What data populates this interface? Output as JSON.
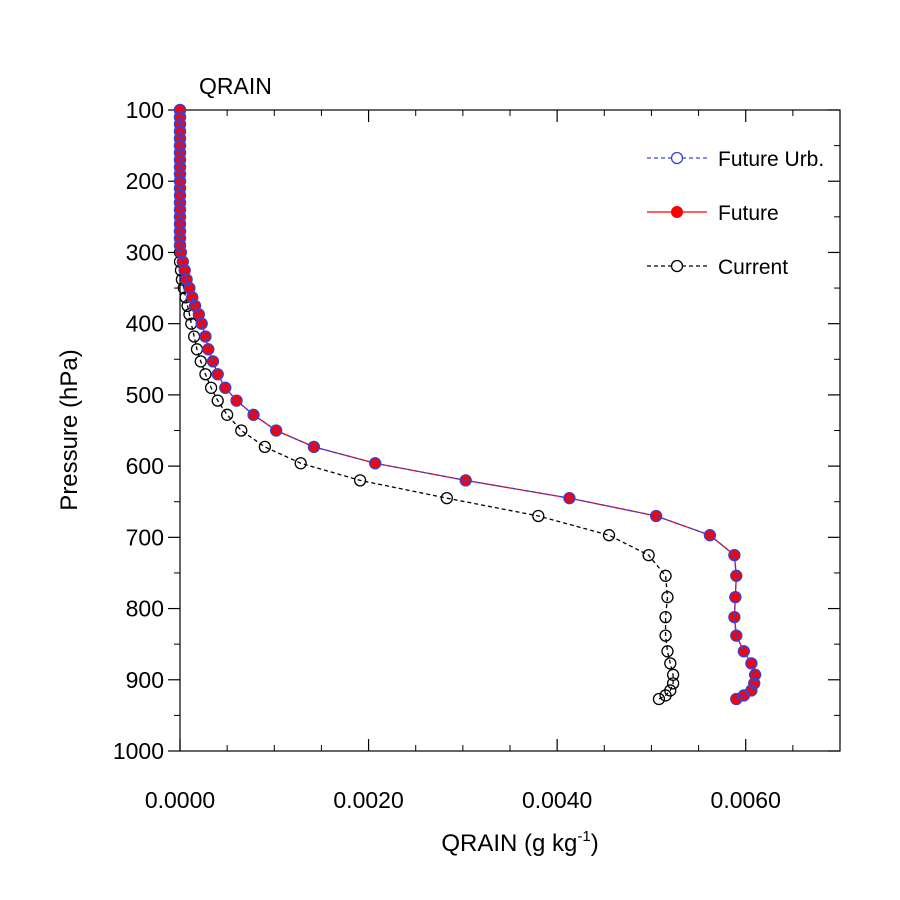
{
  "chart_data": {
    "type": "line",
    "title": "QRAIN",
    "xlabel": "QRAIN (g kg",
    "xlabel_sup": "-1",
    "xlabel_close": ")",
    "ylabel": "Pressure (hPa)",
    "xlim": [
      0.0,
      0.007
    ],
    "ylim": [
      1000,
      100
    ],
    "y_reversed": true,
    "x_ticks": [
      "0.0000",
      "0.0020",
      "0.0040",
      "0.0060"
    ],
    "x_tick_values": [
      0.0,
      0.002,
      0.004,
      0.006
    ],
    "x_minor_step": 0.0005,
    "y_ticks": [
      "100",
      "200",
      "300",
      "400",
      "500",
      "600",
      "700",
      "800",
      "900",
      "1000"
    ],
    "y_tick_values": [
      100,
      200,
      300,
      400,
      500,
      600,
      700,
      800,
      900,
      1000
    ],
    "y_minor_step": 50,
    "grid": false,
    "legend_position": "top-right",
    "series": [
      {
        "name": "Future Urb.",
        "color": "#3344dd",
        "line": "dashed",
        "marker": "open-circle",
        "p": [
          100,
          110,
          120,
          130,
          140,
          150,
          160,
          170,
          180,
          190,
          200,
          210,
          220,
          230,
          240,
          250,
          260,
          270,
          280,
          290,
          300,
          313,
          325,
          338,
          350,
          363,
          375,
          387,
          400,
          418,
          436,
          453,
          471,
          490,
          508,
          528,
          550,
          573,
          596,
          620,
          645,
          670,
          697,
          725,
          754,
          784,
          812,
          838,
          860,
          877,
          893,
          905,
          915,
          922,
          927
        ],
        "x": [
          0,
          0,
          0,
          0,
          0,
          0,
          0,
          0,
          0,
          0,
          0,
          0,
          0,
          0,
          0,
          0,
          0,
          0,
          0,
          0,
          1e-05,
          3e-05,
          5e-05,
          7e-05,
          0.0001,
          0.00013,
          0.00016,
          0.0002,
          0.00023,
          0.00027,
          0.0003,
          0.00035,
          0.0004,
          0.00048,
          0.0006,
          0.00078,
          0.00102,
          0.00142,
          0.00207,
          0.00303,
          0.00413,
          0.00505,
          0.00562,
          0.00588,
          0.0059,
          0.00589,
          0.00588,
          0.0059,
          0.00598,
          0.00606,
          0.0061,
          0.00609,
          0.00606,
          0.00598,
          0.0059
        ]
      },
      {
        "name": "Future",
        "color": "#ff0000",
        "line": "solid",
        "marker": "filled-circle",
        "p": [
          100,
          110,
          120,
          130,
          140,
          150,
          160,
          170,
          180,
          190,
          200,
          210,
          220,
          230,
          240,
          250,
          260,
          270,
          280,
          290,
          300,
          313,
          325,
          338,
          350,
          363,
          375,
          387,
          400,
          418,
          436,
          453,
          471,
          490,
          508,
          528,
          550,
          573,
          596,
          620,
          645,
          670,
          697,
          725,
          754,
          784,
          812,
          838,
          860,
          877,
          893,
          905,
          915,
          922,
          927
        ],
        "x": [
          0,
          0,
          0,
          0,
          0,
          0,
          0,
          0,
          0,
          0,
          0,
          0,
          0,
          0,
          0,
          0,
          0,
          0,
          0,
          0,
          1e-05,
          3e-05,
          5e-05,
          7e-05,
          0.0001,
          0.00013,
          0.00016,
          0.0002,
          0.00023,
          0.00027,
          0.0003,
          0.00035,
          0.0004,
          0.00048,
          0.0006,
          0.00078,
          0.00102,
          0.00142,
          0.00207,
          0.00303,
          0.00413,
          0.00505,
          0.00562,
          0.00588,
          0.0059,
          0.00589,
          0.00588,
          0.0059,
          0.00598,
          0.00606,
          0.0061,
          0.00609,
          0.00606,
          0.00598,
          0.0059
        ]
      },
      {
        "name": "Current",
        "color": "#000000",
        "line": "dashed",
        "marker": "open-circle",
        "p": [
          100,
          110,
          120,
          130,
          140,
          150,
          160,
          170,
          180,
          190,
          200,
          210,
          220,
          230,
          240,
          250,
          260,
          270,
          280,
          290,
          300,
          313,
          325,
          338,
          350,
          363,
          375,
          387,
          400,
          418,
          436,
          453,
          471,
          490,
          508,
          528,
          550,
          573,
          596,
          620,
          645,
          670,
          697,
          725,
          754,
          784,
          812,
          838,
          860,
          877,
          893,
          905,
          915,
          922,
          927
        ],
        "x": [
          0,
          0,
          0,
          0,
          0,
          0,
          0,
          0,
          0,
          0,
          0,
          0,
          0,
          0,
          0,
          0,
          0,
          0,
          0,
          0,
          0,
          0,
          1e-05,
          2e-05,
          4e-05,
          6e-05,
          8e-05,
          0.0001,
          0.00012,
          0.00015,
          0.00018,
          0.00022,
          0.00027,
          0.00033,
          0.0004,
          0.0005,
          0.00065,
          0.0009,
          0.00128,
          0.00191,
          0.00283,
          0.0038,
          0.00455,
          0.00497,
          0.00515,
          0.00517,
          0.00515,
          0.00515,
          0.00517,
          0.0052,
          0.00523,
          0.00523,
          0.0052,
          0.00515,
          0.00508
        ]
      }
    ]
  }
}
